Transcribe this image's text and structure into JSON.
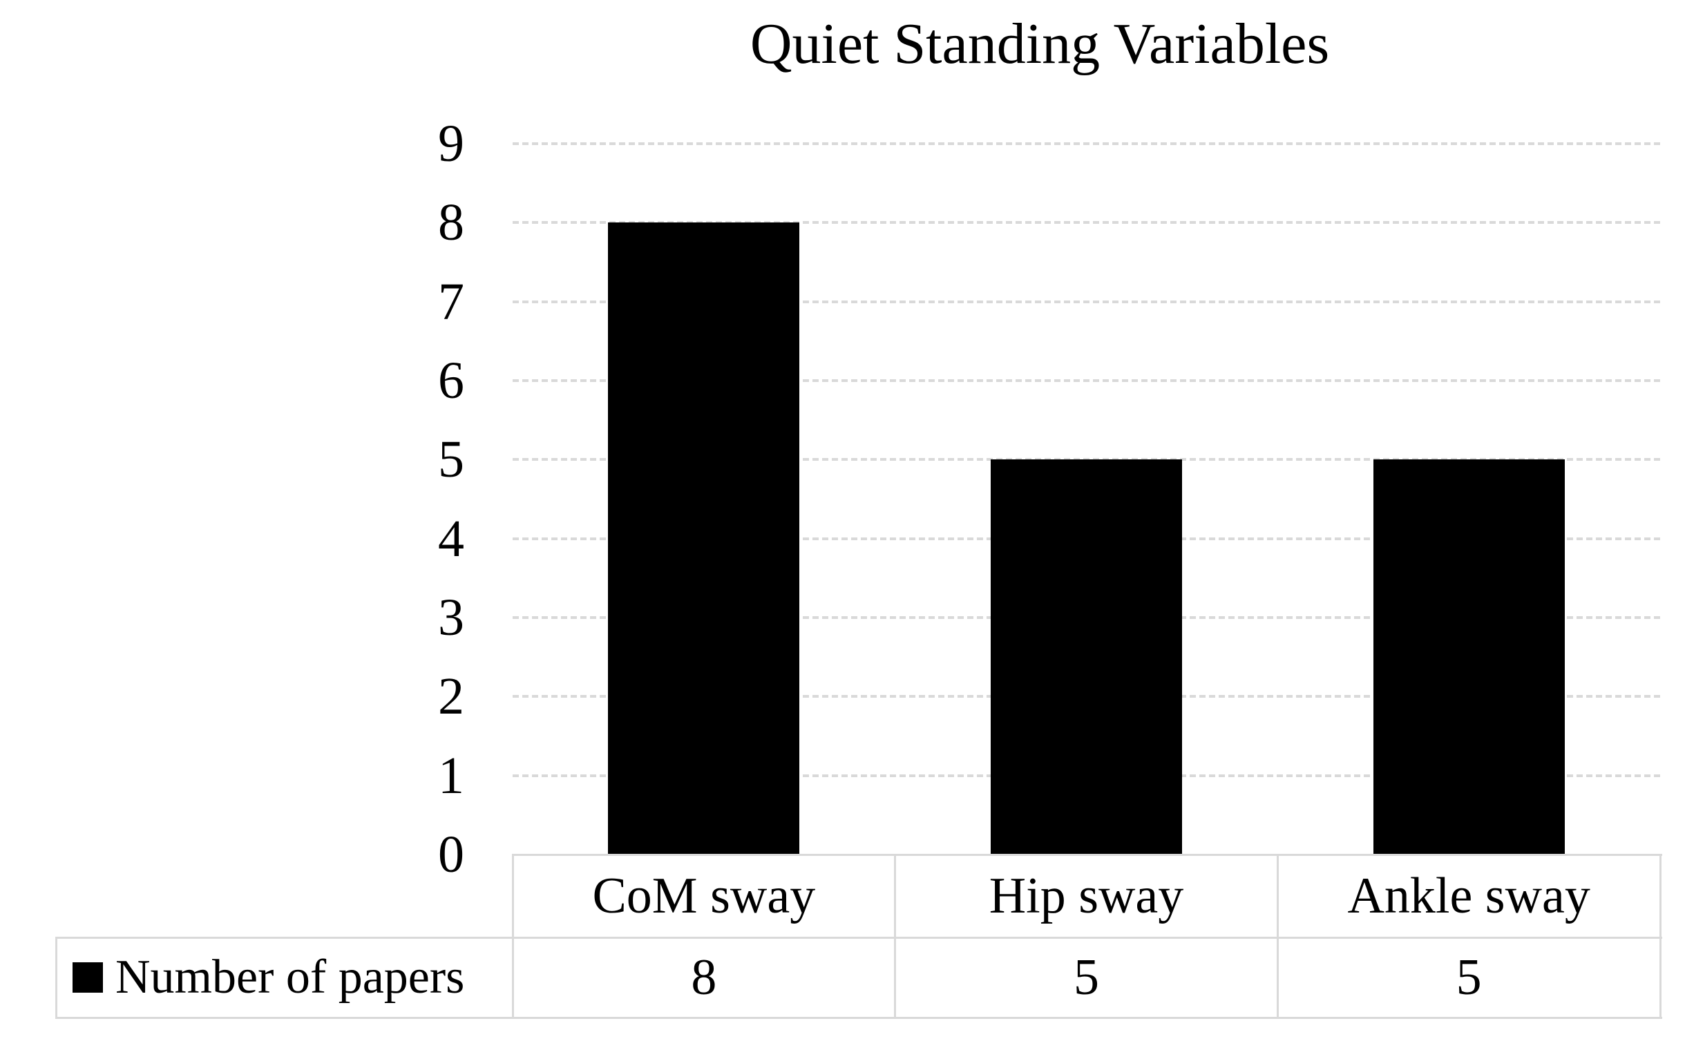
{
  "chart_data": {
    "type": "bar",
    "title": "Quiet Standing Variables",
    "categories": [
      "CoM sway",
      "Hip sway",
      "Ankle sway"
    ],
    "series": [
      {
        "name": "Number of papers",
        "values": [
          8,
          5,
          5
        ]
      }
    ],
    "xlabel": "",
    "ylabel": "",
    "ylim": [
      0,
      9
    ],
    "yticks": [
      "0",
      "1",
      "2",
      "3",
      "4",
      "5",
      "6",
      "7",
      "8",
      "9"
    ],
    "grid": "horizontal-dashed",
    "legend_position": "data-table-left",
    "colors": {
      "bar": "#000000",
      "gridline": "#d9d9d9",
      "table_border": "#d9d9d9",
      "text": "#000000",
      "background": "#ffffff"
    },
    "data_table": {
      "legend_marker": "black-square",
      "legend_label": "Number of papers",
      "columns": [
        "CoM sway",
        "Hip sway",
        "Ankle sway"
      ],
      "values": [
        "8",
        "5",
        "5"
      ]
    }
  }
}
